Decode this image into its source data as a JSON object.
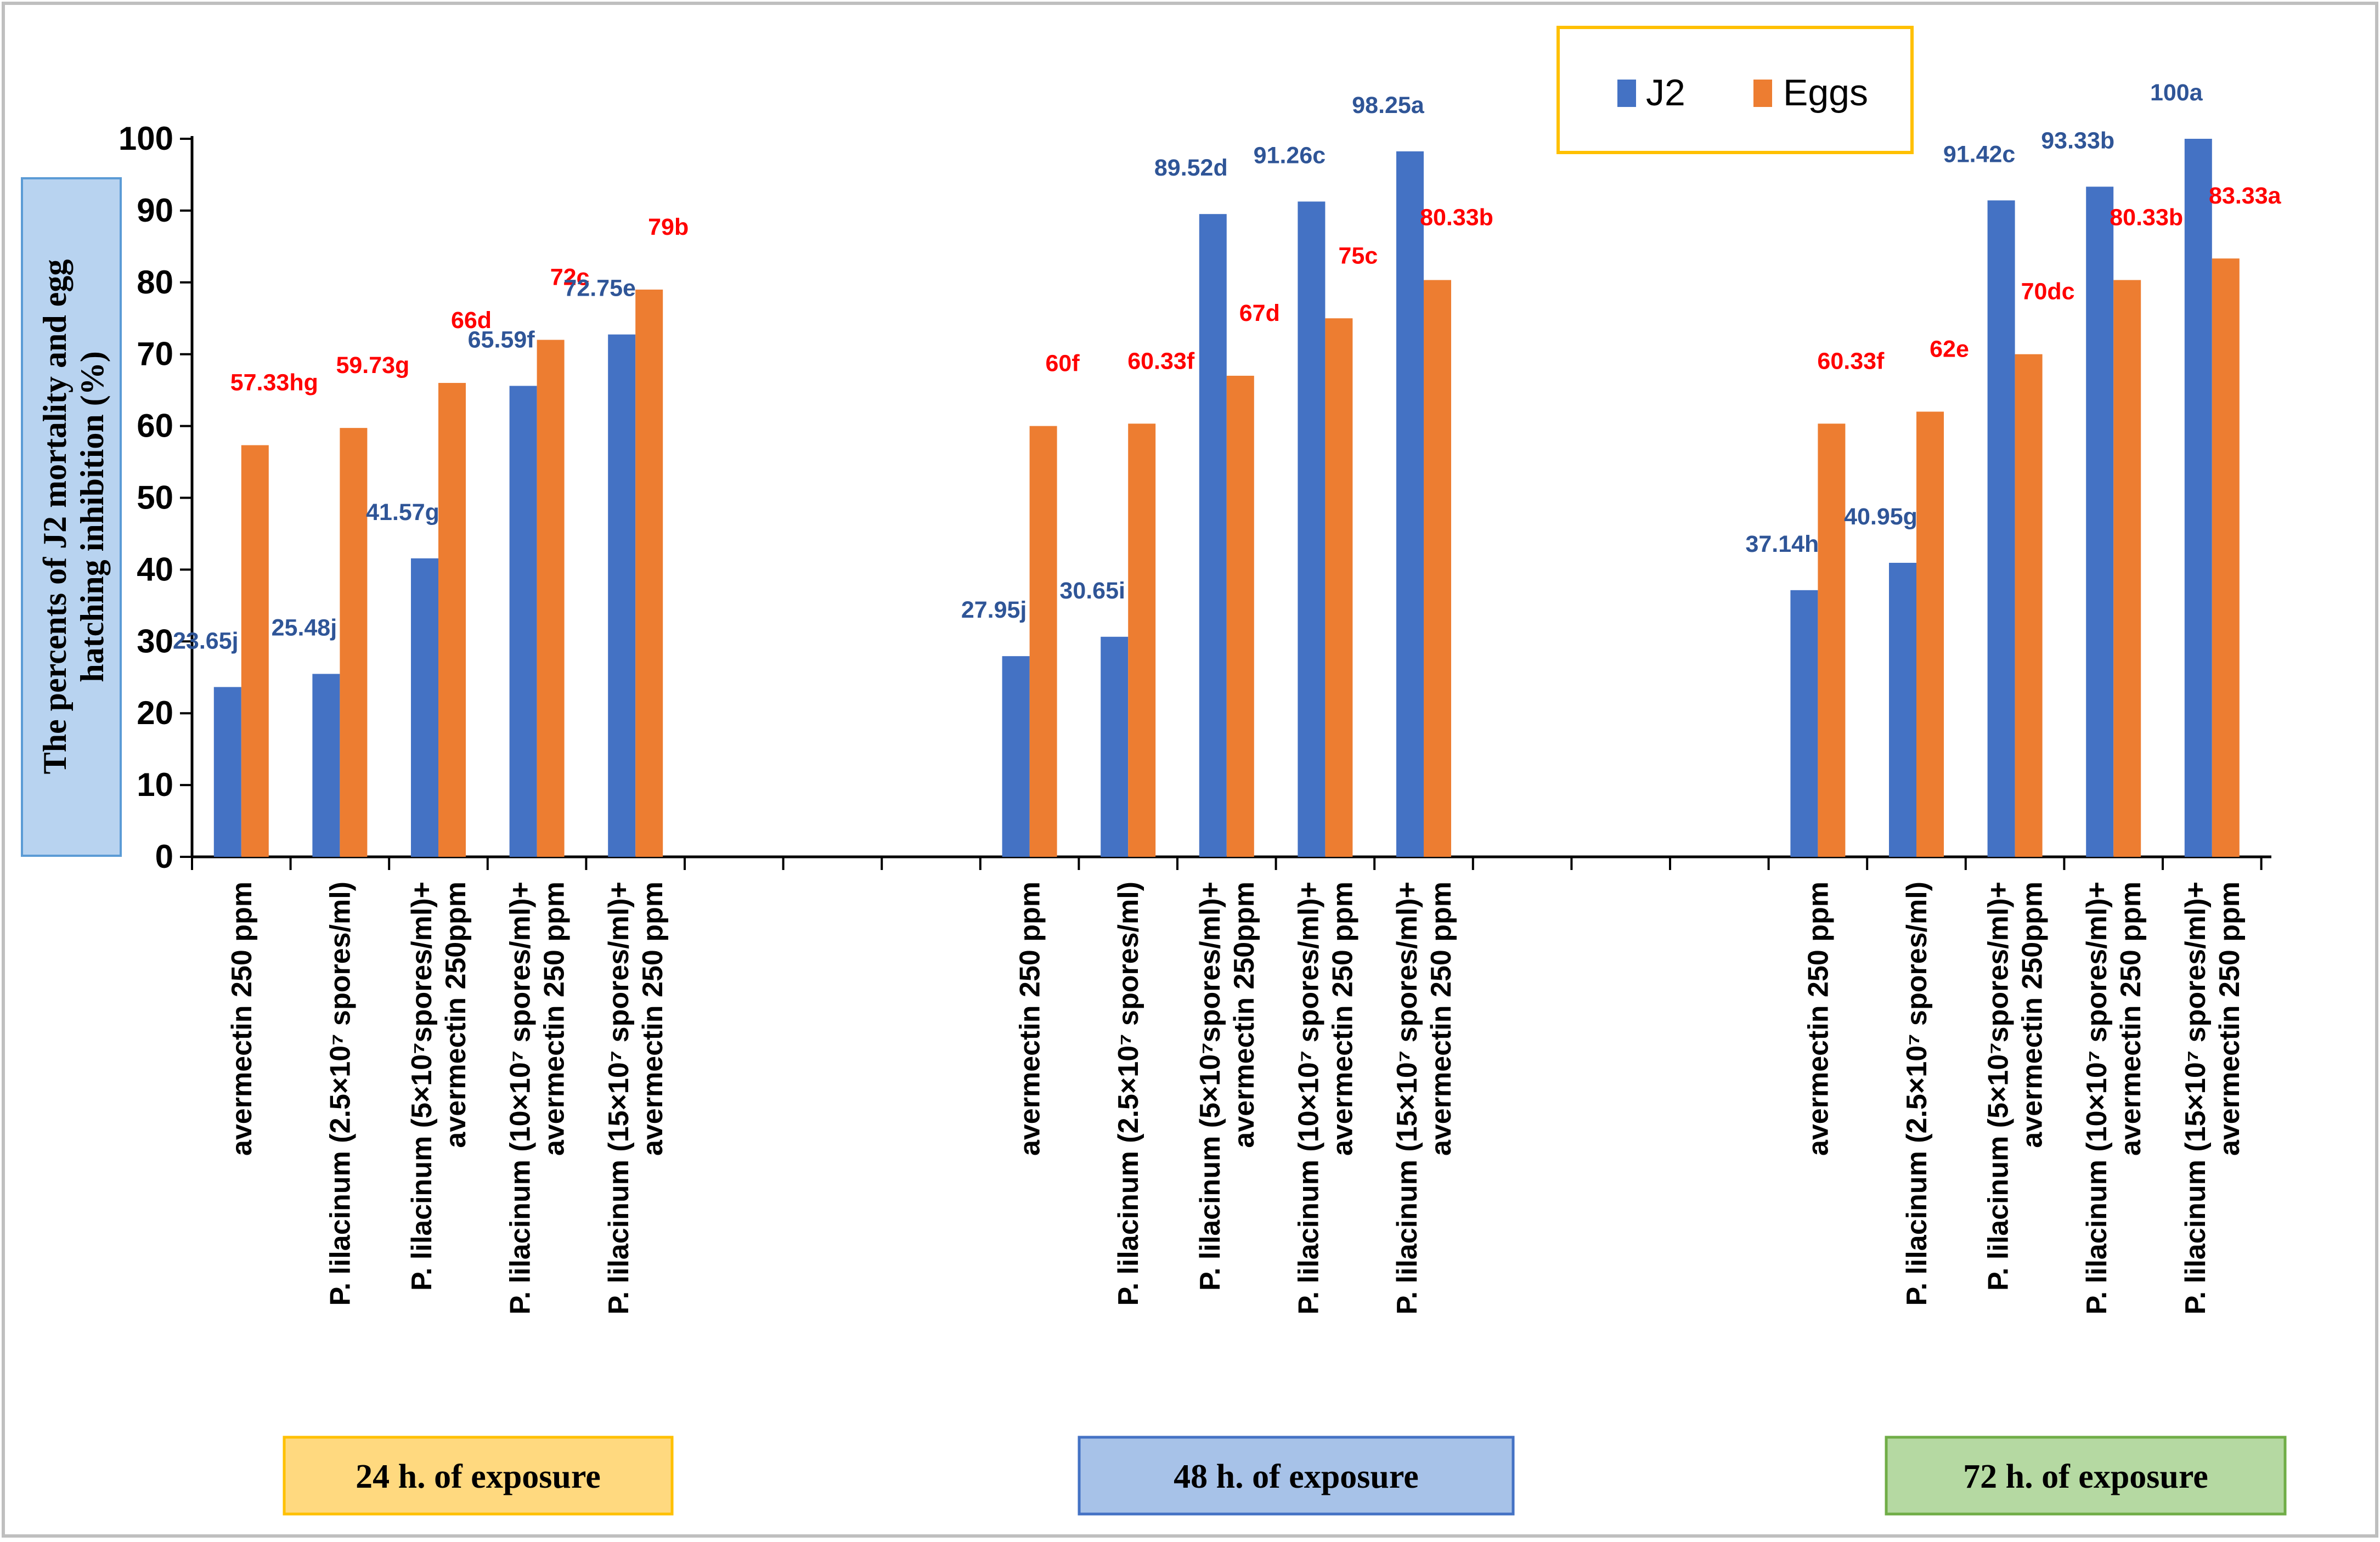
{
  "chart_data": {
    "type": "bar",
    "title": "",
    "ylabel": "The percents of J2 mortality and egg hatching inhibition (%)",
    "ylabel_lines": [
      "The percents of J2 mortality and egg",
      "hatching inhibition (%)"
    ],
    "ylim": [
      0,
      100
    ],
    "yticks": [
      0,
      10,
      20,
      30,
      40,
      50,
      60,
      70,
      80,
      90,
      100
    ],
    "grid": false,
    "legend_position": "top-right",
    "colors": {
      "J2": "#4472C4",
      "Eggs": "#ED7D31",
      "J2_label": "#2F5597",
      "Eggs_label": "#FF0000"
    },
    "categories": [
      [
        "avermectin 250 ppm"
      ],
      [
        "P. lilacinum (2.5×10⁷ spores/ml)"
      ],
      [
        "P. lilacinum (5×10⁷spores/ml)+",
        "avermectin 250ppm"
      ],
      [
        "P. lilacinum (10×10⁷ spores/ml)+",
        "avermectin 250 ppm"
      ],
      [
        "P. lilacinum (15×10⁷ spores/ml)+",
        "avermectin 250 ppm"
      ]
    ],
    "groups": [
      {
        "name": "24 h. of exposure",
        "box_fill": "#FFD97F",
        "box_stroke": "#FFC000",
        "J2": [
          23.65,
          25.48,
          41.57,
          65.59,
          72.75
        ],
        "J2_labels": [
          "23.65j",
          "25.48j",
          "41.57g",
          "65.59f",
          "72.75e"
        ],
        "Eggs": [
          57.33,
          59.73,
          66,
          72,
          79
        ],
        "Eggs_labels": [
          "57.33hg",
          "59.73g",
          "66d",
          "72c",
          "79b"
        ]
      },
      {
        "name": "48 h. of exposure",
        "box_fill": "#A7C2E8",
        "box_stroke": "#4472C4",
        "J2": [
          27.95,
          30.65,
          89.52,
          91.26,
          98.25
        ],
        "J2_labels": [
          "27.95j",
          "30.65i",
          "89.52d",
          "91.26c",
          "98.25a"
        ],
        "Eggs": [
          60,
          60.33,
          67,
          75,
          80.33
        ],
        "Eggs_labels": [
          "60f",
          "60.33f",
          "67d",
          "75c",
          "80.33b"
        ]
      },
      {
        "name": "72 h. of exposure",
        "box_fill": "#B5D9A2",
        "box_stroke": "#70AD47",
        "J2": [
          37.14,
          40.95,
          91.42,
          93.33,
          100
        ],
        "J2_labels": [
          "37.14h",
          "40.95g",
          "91.42c",
          "93.33b",
          "100a"
        ],
        "Eggs": [
          60.33,
          62,
          70,
          80.33,
          83.33
        ],
        "Eggs_labels": [
          "60.33f",
          "62e",
          "70dc",
          "80.33b",
          "83.33a"
        ]
      }
    ],
    "series": [
      {
        "name": "J2"
      },
      {
        "name": "Eggs"
      }
    ]
  }
}
